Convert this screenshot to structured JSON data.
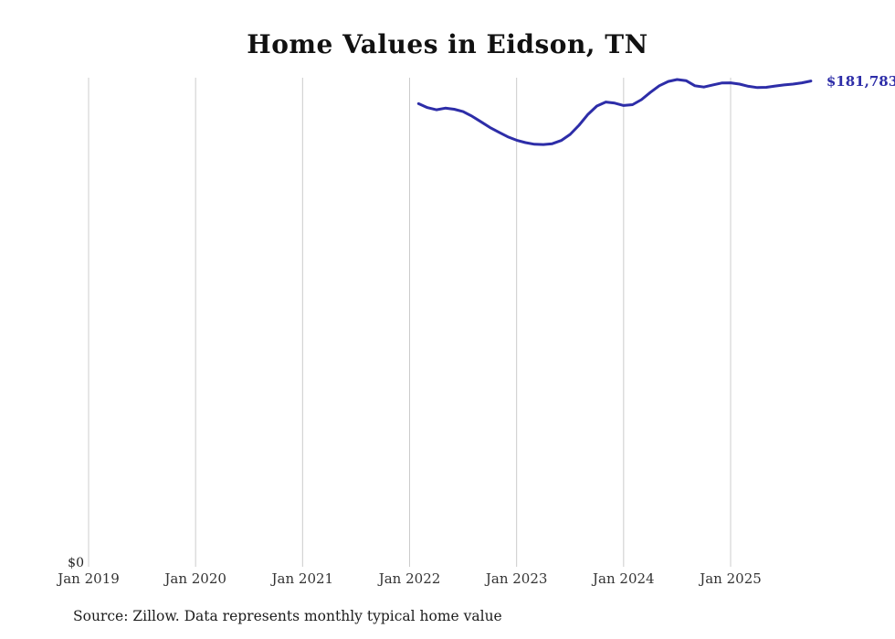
{
  "title": "Home Values in Eidson, TN",
  "labels": {
    "y_zero": "$0",
    "end_value": "$181,783",
    "source": "Source: Zillow. Data represents monthly typical home value"
  },
  "colors": {
    "line": "#2d2da8",
    "end_label": "#2d2da8",
    "grid": "#cccccc",
    "tick_text": "#333333",
    "source_text": "#1c1c1c"
  },
  "chart_data": {
    "type": "line",
    "title": "Home Values in Eidson, TN",
    "xlabel": "",
    "ylabel": "",
    "ylim": [
      0,
      183000
    ],
    "grid": "vertical-only",
    "legend": "none",
    "x_tick_labels": [
      "Jan 2019",
      "Jan 2020",
      "Jan 2021",
      "Jan 2022",
      "Jan 2023",
      "Jan 2024",
      "Jan 2025"
    ],
    "y_tick_labels": [
      "$0"
    ],
    "series": [
      {
        "name": "Monthly typical home value",
        "end_label": "$181,783",
        "months": [
          "2022-02",
          "2022-03",
          "2022-04",
          "2022-05",
          "2022-06",
          "2022-07",
          "2022-08",
          "2022-09",
          "2022-10",
          "2022-11",
          "2022-12",
          "2023-01",
          "2023-02",
          "2023-03",
          "2023-04",
          "2023-05",
          "2023-06",
          "2023-07",
          "2023-08",
          "2023-09",
          "2023-10",
          "2023-11",
          "2023-12",
          "2024-01",
          "2024-02",
          "2024-03",
          "2024-04",
          "2024-05",
          "2024-06",
          "2024-07",
          "2024-08",
          "2024-09",
          "2024-10",
          "2024-11",
          "2024-12",
          "2025-01",
          "2025-02",
          "2025-03",
          "2025-04",
          "2025-05",
          "2025-06",
          "2025-07",
          "2025-08",
          "2025-09",
          "2025-10"
        ],
        "values": [
          173300,
          171800,
          171000,
          171600,
          171200,
          170300,
          168600,
          166500,
          164400,
          162600,
          160900,
          159600,
          158700,
          158100,
          158000,
          158300,
          159500,
          161800,
          165200,
          169300,
          172400,
          173900,
          173500,
          172600,
          172900,
          174800,
          177500,
          180000,
          181600,
          182300,
          181900,
          180000,
          179500,
          180300,
          181000,
          181100,
          180600,
          179800,
          179300,
          179400,
          179900,
          180300,
          180600,
          181100,
          181783
        ]
      }
    ]
  }
}
